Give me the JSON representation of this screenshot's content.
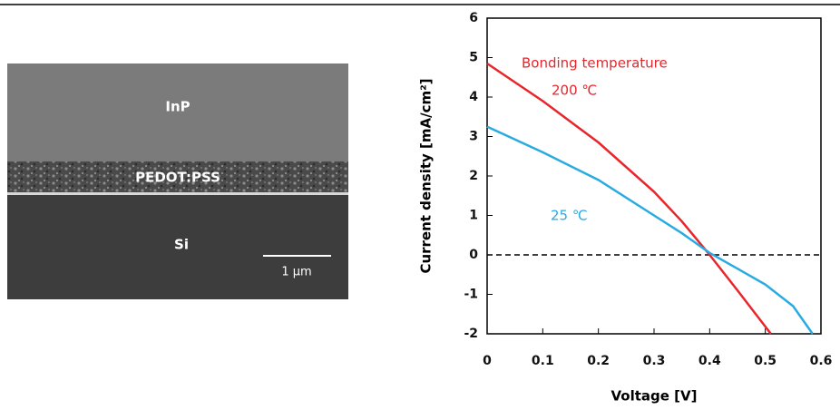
{
  "micrograph": {
    "labels": [
      "InP",
      "PEDOT:PSS",
      "Si"
    ],
    "scale_bar": "1 μm"
  },
  "chart_data": {
    "type": "line",
    "x_label": "Voltage [V]",
    "y_label": "Current density [mA/cm²]",
    "annotation": "Bonding temperature",
    "xlim": [
      0,
      0.6
    ],
    "xticks": [
      0,
      0.1,
      0.2,
      0.3,
      0.4,
      0.5,
      0.6
    ],
    "ylim": [
      -2,
      6
    ],
    "yticks": [
      -2,
      -1,
      0,
      1,
      2,
      3,
      4,
      5,
      6
    ],
    "reference_line": 0,
    "series": [
      {
        "name": "200 ℃",
        "color": "#e8252b",
        "x": [
          0,
          0.1,
          0.2,
          0.3,
          0.35,
          0.4,
          0.45,
          0.51
        ],
        "values": [
          4.85,
          3.9,
          2.85,
          1.6,
          0.85,
          0,
          -0.9,
          -2
        ]
      },
      {
        "name": "25 ℃",
        "color": "#29abe2",
        "x": [
          0,
          0.1,
          0.2,
          0.3,
          0.35,
          0.4,
          0.45,
          0.5,
          0.55,
          0.585
        ],
        "values": [
          3.25,
          2.6,
          1.9,
          1.0,
          0.55,
          0.05,
          -0.35,
          -0.75,
          -1.3,
          -2
        ]
      }
    ]
  }
}
